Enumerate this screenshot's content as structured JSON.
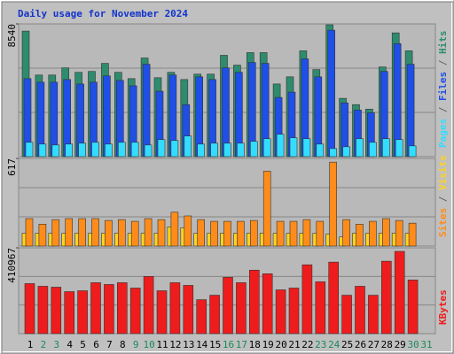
{
  "chart_data": [
    {
      "type": "bar",
      "title": "Daily usage for November 2024",
      "ylim": [
        0,
        8540
      ],
      "yticks": [
        8540
      ],
      "series": [
        {
          "name": "Hits",
          "color": "#2e8b6e",
          "values": [
            8078,
            5251,
            5251,
            5712,
            5424,
            5482,
            6001,
            5424,
            5020,
            6347,
            5078,
            5424,
            4962,
            5308,
            5308,
            6520,
            5885,
            6693,
            6693,
            4674,
            5135,
            6809,
            5597,
            8482,
            3751,
            3347,
            3058,
            5770,
            7963,
            6809,
            null
          ]
        },
        {
          "name": "Files",
          "color": "#1f4fe6",
          "values": [
            5020,
            4789,
            4789,
            4962,
            4674,
            4789,
            5193,
            4905,
            4558,
            5943,
            4212,
            5251,
            3347,
            5135,
            4962,
            5712,
            5424,
            6059,
            6001,
            3808,
            4154,
            6289,
            5135,
            8136,
            3462,
            3000,
            2827,
            5482,
            7270,
            5943,
            null
          ]
        },
        {
          "name": "Pages",
          "color": "#33ddff",
          "values": [
            923,
            808,
            750,
            808,
            866,
            923,
            808,
            923,
            923,
            750,
            1096,
            1039,
            1327,
            808,
            866,
            866,
            866,
            981,
            1154,
            1443,
            1212,
            1154,
            808,
            519,
            635,
            1154,
            923,
            1154,
            1096,
            692,
            null
          ]
        }
      ]
    },
    {
      "type": "bar",
      "ylim": [
        0,
        617
      ],
      "yticks": [
        617
      ],
      "series": [
        {
          "name": "Visits",
          "color": "#ffd21f",
          "values": [
            90,
            90,
            90,
            90,
            90,
            90,
            90,
            90,
            90,
            90,
            90,
            135,
            129,
            90,
            90,
            90,
            90,
            90,
            90,
            90,
            90,
            90,
            90,
            84,
            64,
            90,
            90,
            90,
            90,
            90,
            null
          ]
        },
        {
          "name": "Sites",
          "color": "#ff8c1a",
          "values": [
            193,
            154,
            186,
            193,
            193,
            193,
            180,
            186,
            174,
            193,
            186,
            238,
            212,
            186,
            174,
            174,
            174,
            180,
            527,
            174,
            174,
            186,
            174,
            591,
            186,
            154,
            174,
            193,
            180,
            161,
            null
          ]
        }
      ]
    },
    {
      "type": "bar",
      "ylim": [
        0,
        410967
      ],
      "yticks": [
        410967
      ],
      "categories": [
        "1",
        "2",
        "3",
        "4",
        "5",
        "6",
        "7",
        "8",
        "9",
        "10",
        "11",
        "12",
        "13",
        "14",
        "15",
        "16",
        "17",
        "18",
        "19",
        "20",
        "21",
        "22",
        "23",
        "24",
        "25",
        "26",
        "27",
        "28",
        "29",
        "30",
        "31"
      ],
      "label_colors": [
        "#000",
        "#1a8a5a",
        "#1a8a5a",
        "#000",
        "#000",
        "#000",
        "#000",
        "#000",
        "#1a8a5a",
        "#1a8a5a",
        "#000",
        "#000",
        "#000",
        "#000",
        "#000",
        "#1a8a5a",
        "#1a8a5a",
        "#000",
        "#000",
        "#000",
        "#000",
        "#000",
        "#1a8a5a",
        "#1a8a5a",
        "#000",
        "#000",
        "#000",
        "#000",
        "#000",
        "#1a8a5a",
        "#1a8a5a"
      ],
      "series": [
        {
          "name": "KBytes",
          "color": "#ee1c1c",
          "values": [
            239736,
            226893,
            222612,
            201207,
            205488,
            244017,
            235455,
            244017,
            218331,
            273984,
            205488,
            244017,
            231174,
            162678,
            184083,
            269703,
            244017,
            303951,
            286827,
            209769,
            218331,
            329637,
            248298,
            342480,
            184083,
            226893,
            184083,
            346761,
            393852,
            256860,
            null
          ]
        }
      ]
    }
  ]
}
